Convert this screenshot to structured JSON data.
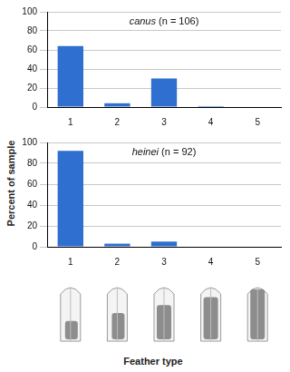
{
  "ylabel": "Percent of sample",
  "xlabel": "Feather type",
  "chart_data": [
    {
      "type": "bar",
      "title": "canus (n = 106)",
      "categories": [
        "1",
        "2",
        "3",
        "4",
        "5"
      ],
      "values": [
        64,
        4,
        30,
        1,
        0
      ],
      "color": "#2e6fcf",
      "ylim": [
        0,
        100
      ],
      "yticks": [
        0,
        20,
        40,
        60,
        80,
        100
      ],
      "grid": true
    },
    {
      "type": "bar",
      "title": "heinei (n = 92)",
      "categories": [
        "1",
        "2",
        "3",
        "4",
        "5"
      ],
      "values": [
        92,
        3,
        5,
        0,
        0
      ],
      "color": "#2e6fcf",
      "ylim": [
        0,
        100
      ],
      "yticks": [
        0,
        20,
        40,
        60,
        80,
        100
      ],
      "grid": true
    }
  ]
}
